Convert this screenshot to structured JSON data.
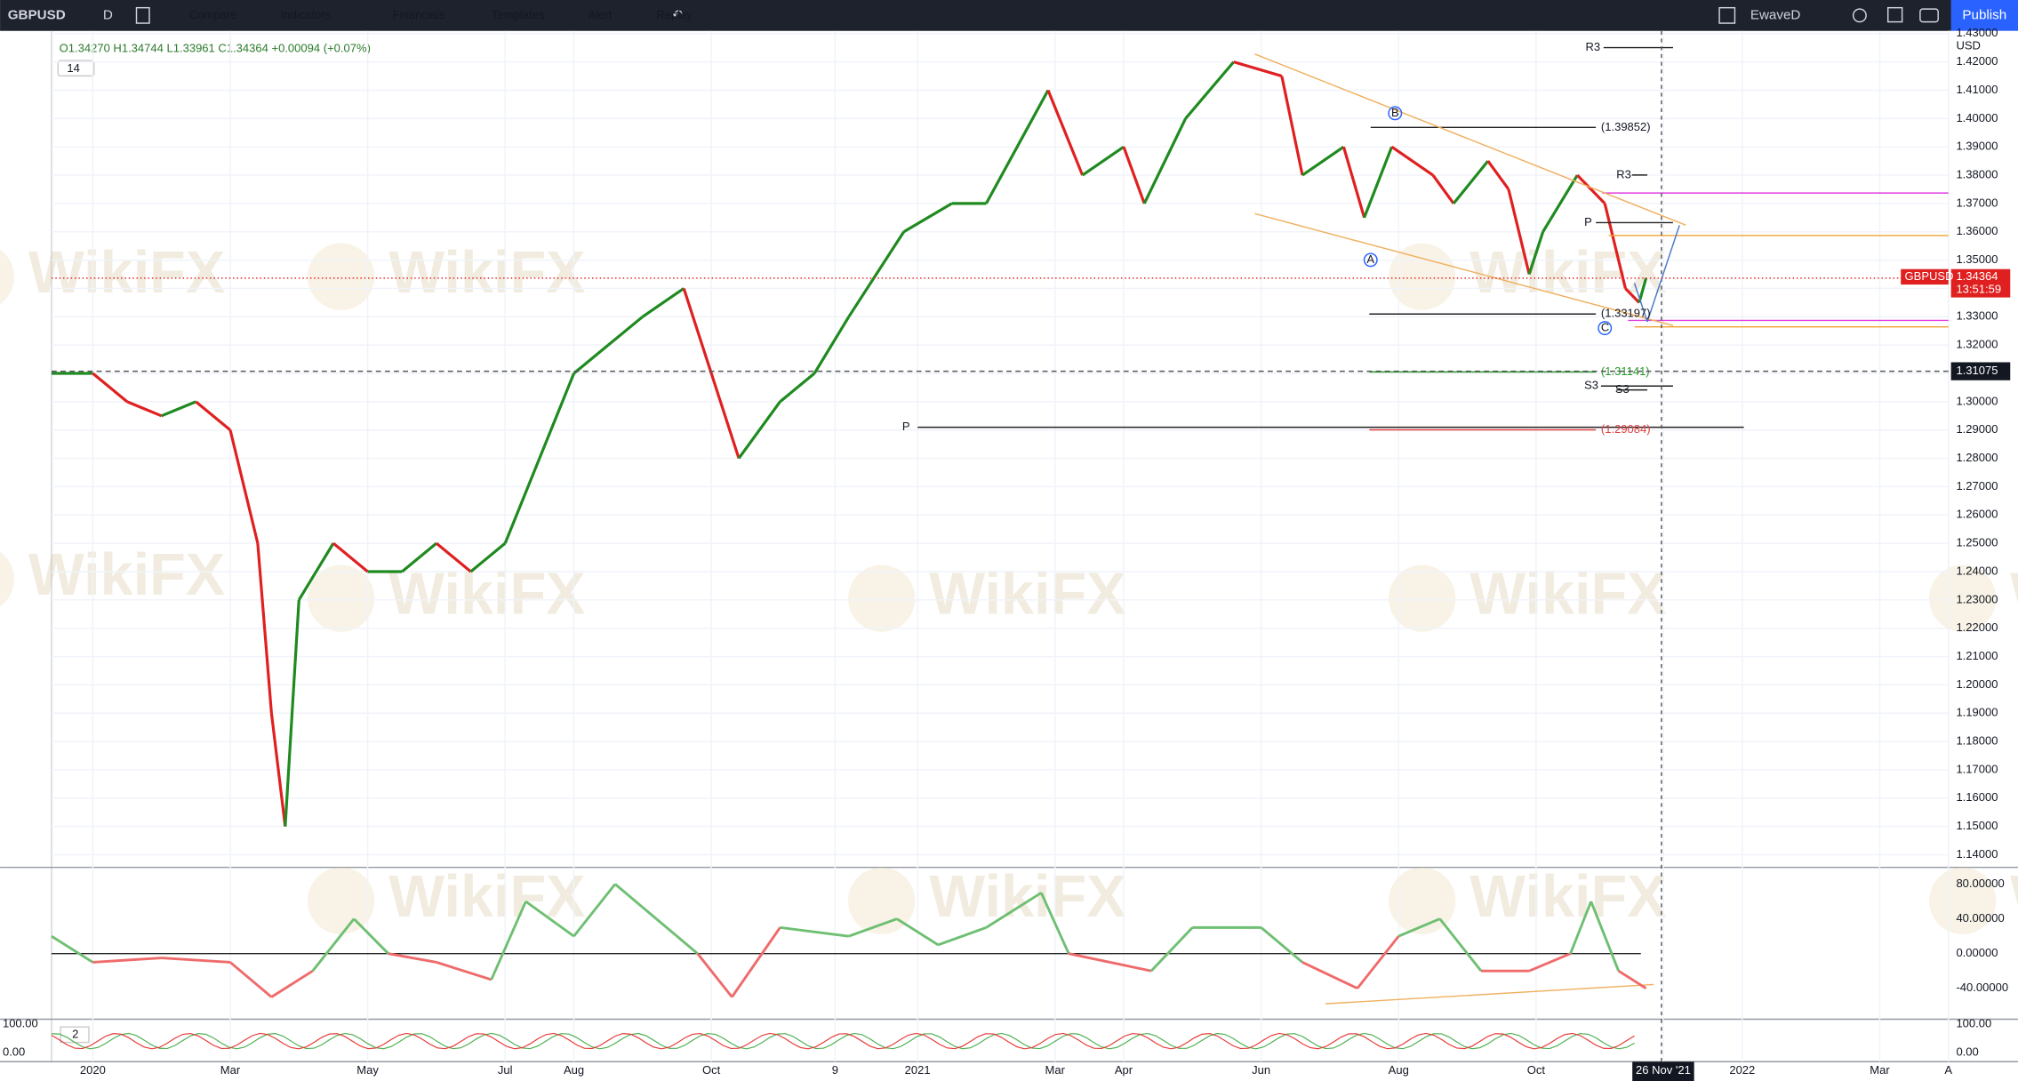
{
  "toolbar": {
    "symbol": "GBPUSD",
    "interval": "D",
    "items": [
      "Compare",
      "Indicators",
      "Financials",
      "Templates",
      "Alert",
      "Replay"
    ],
    "layout": "EwaveD",
    "publish": "Publish"
  },
  "legend": {
    "ohlc": "O1.34270 H1.34744 L1.33961 C1.34364 +0.00094 (+0.07%)",
    "length": "14"
  },
  "watermark": "WikiFX",
  "chart_data": [
    {
      "type": "line",
      "currency": "USD",
      "x": [
        -0.6,
        0,
        0.5,
        1,
        1.5,
        2,
        2.4,
        2.6,
        2.8,
        3,
        3.5,
        4,
        4.5,
        5,
        5.5,
        6,
        6.5,
        7,
        7.5,
        8,
        8.6,
        9.4,
        10,
        10.5,
        11,
        11.8,
        12.5,
        13,
        13.9,
        14.4,
        15,
        15.3,
        15.9,
        16.6,
        17.3,
        17.6,
        18.2,
        18.5,
        18.9,
        19.5,
        19.8,
        20.3,
        20.6,
        20.9,
        21.1,
        21.6,
        22,
        22.3,
        22.5,
        22.6
      ],
      "values": [
        1.31,
        1.31,
        1.3,
        1.295,
        1.3,
        1.29,
        1.25,
        1.19,
        1.15,
        1.23,
        1.25,
        1.24,
        1.24,
        1.25,
        1.24,
        1.25,
        1.28,
        1.31,
        1.32,
        1.33,
        1.34,
        1.28,
        1.3,
        1.31,
        1.33,
        1.36,
        1.37,
        1.37,
        1.41,
        1.38,
        1.39,
        1.37,
        1.4,
        1.42,
        1.415,
        1.38,
        1.39,
        1.365,
        1.39,
        1.38,
        1.37,
        1.385,
        1.375,
        1.345,
        1.36,
        1.38,
        1.37,
        1.34,
        1.335,
        1.34364
      ],
      "xlim": [
        -0.6,
        27
      ],
      "ylim": [
        1.136,
        1.4305
      ],
      "xticks": [
        {
          "value": 0,
          "label": "2020"
        },
        {
          "value": 2,
          "label": "Mar"
        },
        {
          "value": 4,
          "label": "May"
        },
        {
          "value": 6,
          "label": "Jul"
        },
        {
          "value": 7,
          "label": "Aug"
        },
        {
          "value": 9,
          "label": "Oct"
        },
        {
          "value": 10.8,
          "label": "9"
        },
        {
          "value": 12,
          "label": "2021"
        },
        {
          "value": 14,
          "label": "Mar"
        },
        {
          "value": 15,
          "label": "Apr"
        },
        {
          "value": 17,
          "label": "Jun"
        },
        {
          "value": 19,
          "label": "Aug"
        },
        {
          "value": 21,
          "label": "Oct"
        },
        {
          "value": 22.85,
          "label": "26 Nov '21"
        },
        {
          "value": 24,
          "label": "2022"
        },
        {
          "value": 26,
          "label": "Mar"
        },
        {
          "value": 27,
          "label": "A"
        }
      ],
      "yticks": [
        {
          "value": 1.43,
          "label": "1.43000"
        },
        {
          "value": 1.42,
          "label": "1.42000"
        },
        {
          "value": 1.41,
          "label": "1.41000"
        },
        {
          "value": 1.4,
          "label": "1.40000"
        },
        {
          "value": 1.39,
          "label": "1.39000"
        },
        {
          "value": 1.38,
          "label": "1.38000"
        },
        {
          "value": 1.37,
          "label": "1.37000"
        },
        {
          "value": 1.36,
          "label": "1.36000"
        },
        {
          "value": 1.35,
          "label": "1.35000"
        },
        {
          "value": 1.34,
          "label": "1.34000"
        },
        {
          "value": 1.33,
          "label": "1.33000"
        },
        {
          "value": 1.32,
          "label": "1.32000"
        },
        {
          "value": 1.31,
          "label": "1.31000"
        },
        {
          "value": 1.3,
          "label": "1.30000"
        },
        {
          "value": 1.29,
          "label": "1.29000"
        },
        {
          "value": 1.28,
          "label": "1.28000"
        },
        {
          "value": 1.27,
          "label": "1.27000"
        },
        {
          "value": 1.26,
          "label": "1.26000"
        },
        {
          "value": 1.25,
          "label": "1.25000"
        },
        {
          "value": 1.24,
          "label": "1.24000"
        },
        {
          "value": 1.23,
          "label": "1.23000"
        },
        {
          "value": 1.22,
          "label": "1.22000"
        },
        {
          "value": 1.21,
          "label": "1.21000"
        },
        {
          "value": 1.2,
          "label": "1.20000"
        },
        {
          "value": 1.19,
          "label": "1.19000"
        },
        {
          "value": 1.18,
          "label": "1.18000"
        },
        {
          "value": 1.17,
          "label": "1.17000"
        },
        {
          "value": 1.16,
          "label": "1.16000"
        },
        {
          "value": 1.15,
          "label": "1.15000"
        },
        {
          "value": 1.14,
          "label": "1.14000"
        }
      ],
      "price_tag": {
        "symbol": "GBPUSD",
        "value": 1.34364,
        "label": "1.34364",
        "countdown": "13:51:59"
      },
      "crosshair": {
        "value": 1.31075,
        "label": "1.31075"
      },
      "annotations": [
        "R3",
        "(1.39852)",
        "R3",
        "P",
        "(1.33197)",
        "(1.31141)",
        "S3",
        "S3",
        "(1.29084)",
        "P",
        "A",
        "B",
        "C"
      ],
      "up_color": "#26a69a",
      "candle_up": "#1f8a1f",
      "candle_down": "#e02020",
      "grid": true
    },
    {
      "type": "oscillator",
      "x": [
        -0.6,
        0,
        1,
        2,
        2.6,
        3.2,
        3.8,
        4.3,
        5,
        5.8,
        6.3,
        7,
        7.6,
        8.2,
        8.8,
        9.3,
        10,
        11,
        11.7,
        12.3,
        13,
        13.8,
        14.2,
        14.8,
        15.4,
        16,
        17,
        17.6,
        18.4,
        19,
        19.6,
        20.2,
        20.9,
        21.5,
        21.8,
        22.2,
        22.6
      ],
      "values": [
        20,
        -10,
        -5,
        -10,
        -50,
        -20,
        40,
        0,
        -10,
        -30,
        60,
        20,
        80,
        40,
        0,
        -50,
        30,
        20,
        40,
        10,
        30,
        70,
        0,
        -10,
        -20,
        30,
        30,
        -10,
        -40,
        20,
        40,
        -20,
        -20,
        0,
        60,
        -20,
        -40
      ],
      "ylim": [
        -75.6,
        97.8
      ],
      "yticks": [
        {
          "value": 80,
          "label": "80.00000"
        },
        {
          "value": 40,
          "label": "40.00000"
        },
        {
          "value": 0,
          "label": "0.00000"
        },
        {
          "value": -40,
          "label": "-40.00000"
        }
      ],
      "up_color": "#6fbf73",
      "down_color": "#ef6b6b"
    },
    {
      "type": "stochastic",
      "length": "2",
      "ylim": [
        -31.8,
        113.6
      ],
      "yticks": [
        {
          "value": 100,
          "label": "100.00"
        },
        {
          "value": 0,
          "label": "0.00"
        }
      ]
    }
  ]
}
